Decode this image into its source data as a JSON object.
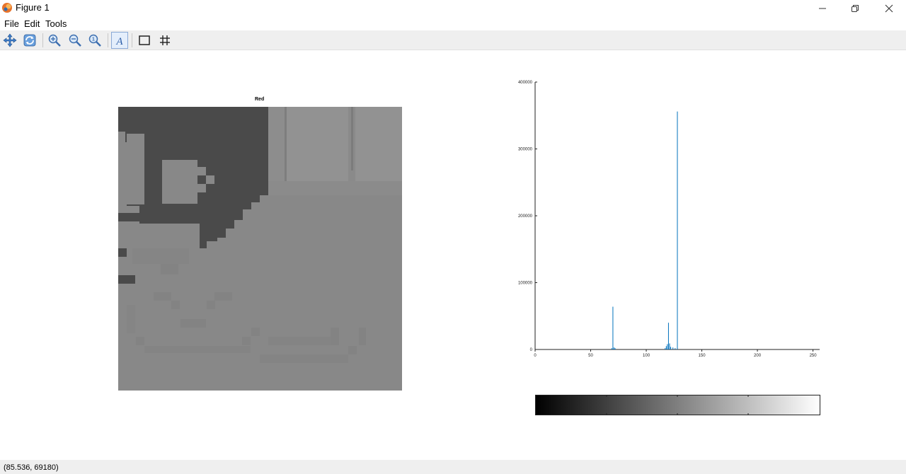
{
  "window": {
    "title": "Figure 1",
    "controls": [
      "minimize",
      "maximize",
      "close"
    ]
  },
  "menu": {
    "items": [
      {
        "label": "File"
      },
      {
        "label": "Edit"
      },
      {
        "label": "Tools"
      }
    ]
  },
  "toolbar": {
    "buttons": [
      "pan-icon",
      "rotate-icon",
      "zoom-in-icon",
      "zoom-out-icon",
      "zoom-reset-icon",
      "text-tool-icon",
      "axes-box-icon",
      "grid-icon"
    ]
  },
  "image_panel": {
    "title": "Red"
  },
  "status": {
    "coordinates": "(85.536, 69180)"
  },
  "colors": {
    "histogram_line": "#0072bd",
    "toolbar_bg": "#efefef"
  },
  "chart_data": {
    "type": "bar",
    "title": "",
    "xlabel": "",
    "ylabel": "",
    "xlim": [
      0,
      255
    ],
    "ylim": [
      0,
      400000
    ],
    "xticks": [
      "0",
      "50",
      "100",
      "150",
      "200",
      "250"
    ],
    "yticks": [
      "0",
      "100000",
      "200000",
      "300000",
      "400000"
    ],
    "x": [
      69,
      70,
      71,
      72,
      117,
      118,
      119,
      120,
      121,
      122,
      124,
      126,
      128
    ],
    "values": [
      2000,
      64000,
      3000,
      2000,
      2000,
      5000,
      8000,
      40000,
      9000,
      4000,
      3000,
      2000,
      356000
    ],
    "colorbar": {
      "range": [
        0,
        255
      ],
      "colormap": "gray"
    }
  }
}
